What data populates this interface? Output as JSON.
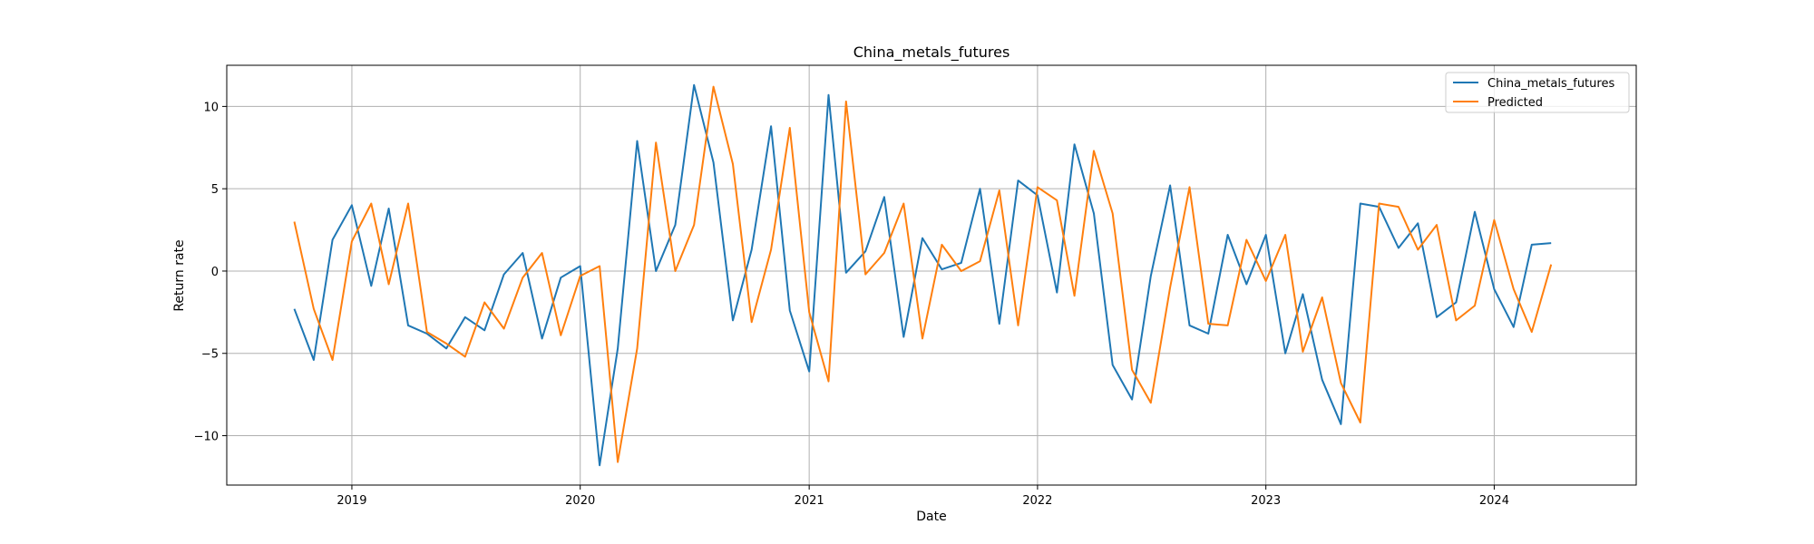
{
  "chart_data": {
    "type": "line",
    "title": "China_metals_futures",
    "xlabel": "Date",
    "ylabel": "Return rate",
    "x_ticks": [
      "2019",
      "2020",
      "2021",
      "2022",
      "2023",
      "2024"
    ],
    "y_ticks": [
      -10,
      -5,
      0,
      5,
      10
    ],
    "xlim": [
      "2018-06-15",
      "2024-08-15"
    ],
    "ylim": [
      -13,
      12.5
    ],
    "grid": true,
    "legend_position": "top-right",
    "x": [
      "2018-10-01",
      "2018-11-01",
      "2018-12-01",
      "2019-01-01",
      "2019-02-01",
      "2019-03-01",
      "2019-04-01",
      "2019-05-01",
      "2019-06-01",
      "2019-07-01",
      "2019-08-01",
      "2019-09-01",
      "2019-10-01",
      "2019-11-01",
      "2019-12-01",
      "2020-01-01",
      "2020-02-01",
      "2020-03-01",
      "2020-04-01",
      "2020-05-01",
      "2020-06-01",
      "2020-07-01",
      "2020-08-01",
      "2020-09-01",
      "2020-10-01",
      "2020-11-01",
      "2020-12-01",
      "2021-01-01",
      "2021-02-01",
      "2021-03-01",
      "2021-04-01",
      "2021-05-01",
      "2021-06-01",
      "2021-07-01",
      "2021-08-01",
      "2021-09-01",
      "2021-10-01",
      "2021-11-01",
      "2021-12-01",
      "2022-01-01",
      "2022-02-01",
      "2022-03-01",
      "2022-04-01",
      "2022-05-01",
      "2022-06-01",
      "2022-07-01",
      "2022-08-01",
      "2022-09-01",
      "2022-10-01",
      "2022-11-01",
      "2022-12-01",
      "2023-01-01",
      "2023-02-01",
      "2023-03-01",
      "2023-04-01",
      "2023-05-01",
      "2023-06-01",
      "2023-07-01",
      "2023-08-01",
      "2023-09-01",
      "2023-10-01",
      "2023-11-01",
      "2023-12-01",
      "2024-01-01",
      "2024-02-01",
      "2024-03-01",
      "2024-04-01"
    ],
    "series": [
      {
        "name": "China_metals_futures",
        "color": "#1f77b4",
        "values": [
          -2.3,
          -5.4,
          1.9,
          4.0,
          -0.9,
          3.8,
          -3.3,
          -3.8,
          -4.7,
          -2.8,
          -3.6,
          -0.2,
          1.1,
          -4.1,
          -0.4,
          0.3,
          -11.8,
          -4.7,
          7.9,
          0.0,
          2.8,
          11.3,
          6.6,
          -3.0,
          1.3,
          8.8,
          -2.4,
          -6.1,
          10.7,
          -0.1,
          1.2,
          4.5,
          -4.0,
          2.0,
          0.1,
          0.5,
          5.0,
          -3.2,
          5.5,
          4.6,
          -1.3,
          7.7,
          3.5,
          -5.7,
          -7.8,
          -0.3,
          5.2,
          -3.3,
          -3.8,
          2.2,
          -0.8,
          2.2,
          -5.0,
          -1.4,
          -6.6,
          -9.3,
          4.1,
          3.9,
          1.4,
          2.9,
          -2.8,
          -1.9,
          3.6,
          -1.1,
          -3.4,
          1.6,
          1.7
        ]
      },
      {
        "name": "Predicted",
        "color": "#ff7f0e",
        "values": [
          3.0,
          -2.3,
          -5.4,
          1.8,
          4.1,
          -0.8,
          4.1,
          -3.7,
          -4.4,
          -5.2,
          -1.9,
          -3.5,
          -0.4,
          1.1,
          -3.9,
          -0.3,
          0.3,
          -11.6,
          -4.7,
          7.8,
          0.0,
          2.8,
          11.2,
          6.5,
          -3.1,
          1.3,
          8.7,
          -2.5,
          -6.7,
          10.3,
          -0.2,
          1.1,
          4.1,
          -4.1,
          1.6,
          0.0,
          0.6,
          4.9,
          -3.3,
          5.1,
          4.3,
          -1.5,
          7.3,
          3.5,
          -6.0,
          -8.0,
          -1.0,
          5.1,
          -3.2,
          -3.3,
          1.9,
          -0.6,
          2.2,
          -4.9,
          -1.6,
          -6.8,
          -9.2,
          4.1,
          3.9,
          1.3,
          2.8,
          -3.0,
          -2.1,
          3.1,
          -1.1,
          -3.7,
          0.4
        ]
      }
    ]
  }
}
